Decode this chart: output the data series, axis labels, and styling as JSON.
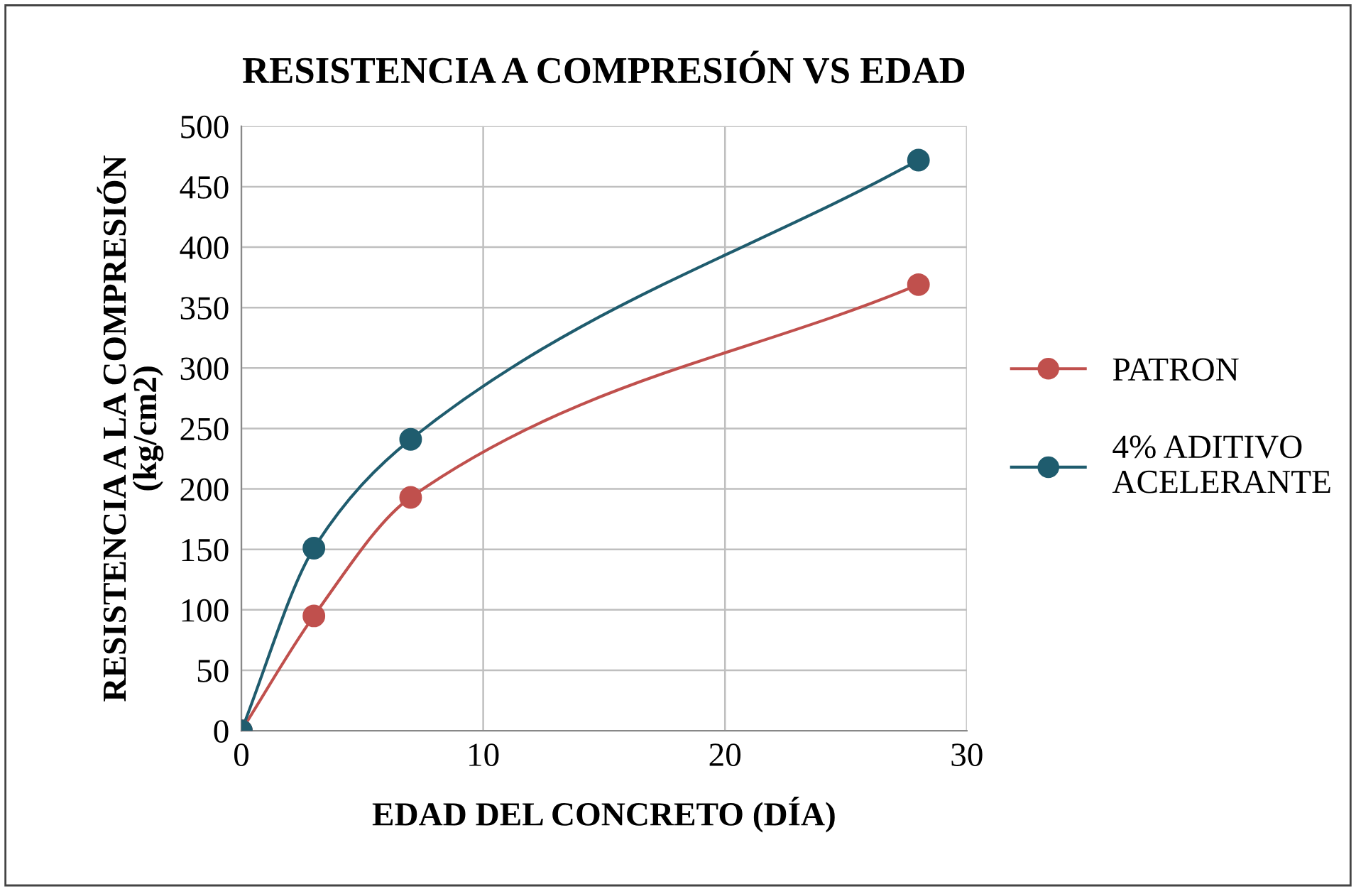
{
  "chart_data": {
    "type": "line",
    "title": "RESISTENCIA A COMPRESIÓN VS EDAD",
    "xlabel": "EDAD DEL CONCRETO (DÍA)",
    "ylabel": "RESISTENCIA A LA COMPRESIÓN\n(kg/cm2)",
    "x": [
      0,
      3,
      7,
      28
    ],
    "series": [
      {
        "name": "PATRON",
        "color": "#c0504d",
        "values": [
          0,
          95,
          193,
          369
        ]
      },
      {
        "name": "4% ADITIVO\nACELERANTE",
        "color": "#1f5c6e",
        "values": [
          0,
          151,
          241,
          472
        ]
      }
    ],
    "xlim": [
      0,
      30
    ],
    "xticks": [
      0,
      10,
      20,
      30
    ],
    "ylim": [
      0,
      500
    ],
    "yticks": [
      0,
      50,
      100,
      150,
      200,
      250,
      300,
      350,
      400,
      450,
      500
    ],
    "grid": true,
    "legend": "right",
    "marker": "circle",
    "line_style": "solid"
  }
}
